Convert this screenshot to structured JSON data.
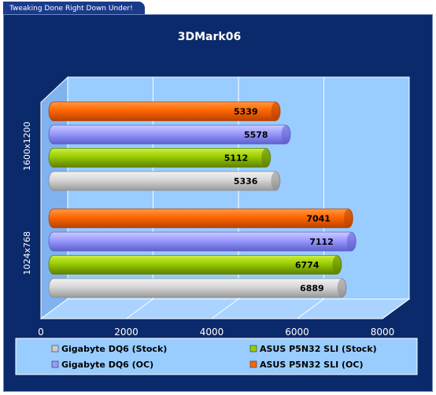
{
  "header": {
    "tagline": "Tweaking Done Right Down Under!"
  },
  "chart_data": {
    "type": "bar",
    "orientation": "horizontal",
    "title": "3DMark06",
    "categories": [
      "1600x1200",
      "1024x768"
    ],
    "series": [
      {
        "name": "Gigabyte DQ6 (Stock)",
        "color": "#cccccc",
        "values": [
          5336,
          6889
        ]
      },
      {
        "name": "ASUS P5N32 SLI (Stock)",
        "color": "#99cc00",
        "values": [
          5112,
          6774
        ]
      },
      {
        "name": "Gigabyte DQ6 (OC)",
        "color": "#9999ff",
        "values": [
          5578,
          7112
        ]
      },
      {
        "name": "ASUS P5N32 SLI (OC)",
        "color": "#ff6600",
        "values": [
          5339,
          7041
        ]
      }
    ],
    "xlim": [
      0,
      8000
    ],
    "xticks": [
      "0",
      "2000",
      "4000",
      "6000",
      "8000"
    ],
    "grid": true,
    "legend_position": "bottom"
  },
  "colors": {
    "background": "#0b2a6b",
    "plot_back": "#99ccff",
    "wall_left": "#80b3ff",
    "floor": "#aad3ff"
  }
}
